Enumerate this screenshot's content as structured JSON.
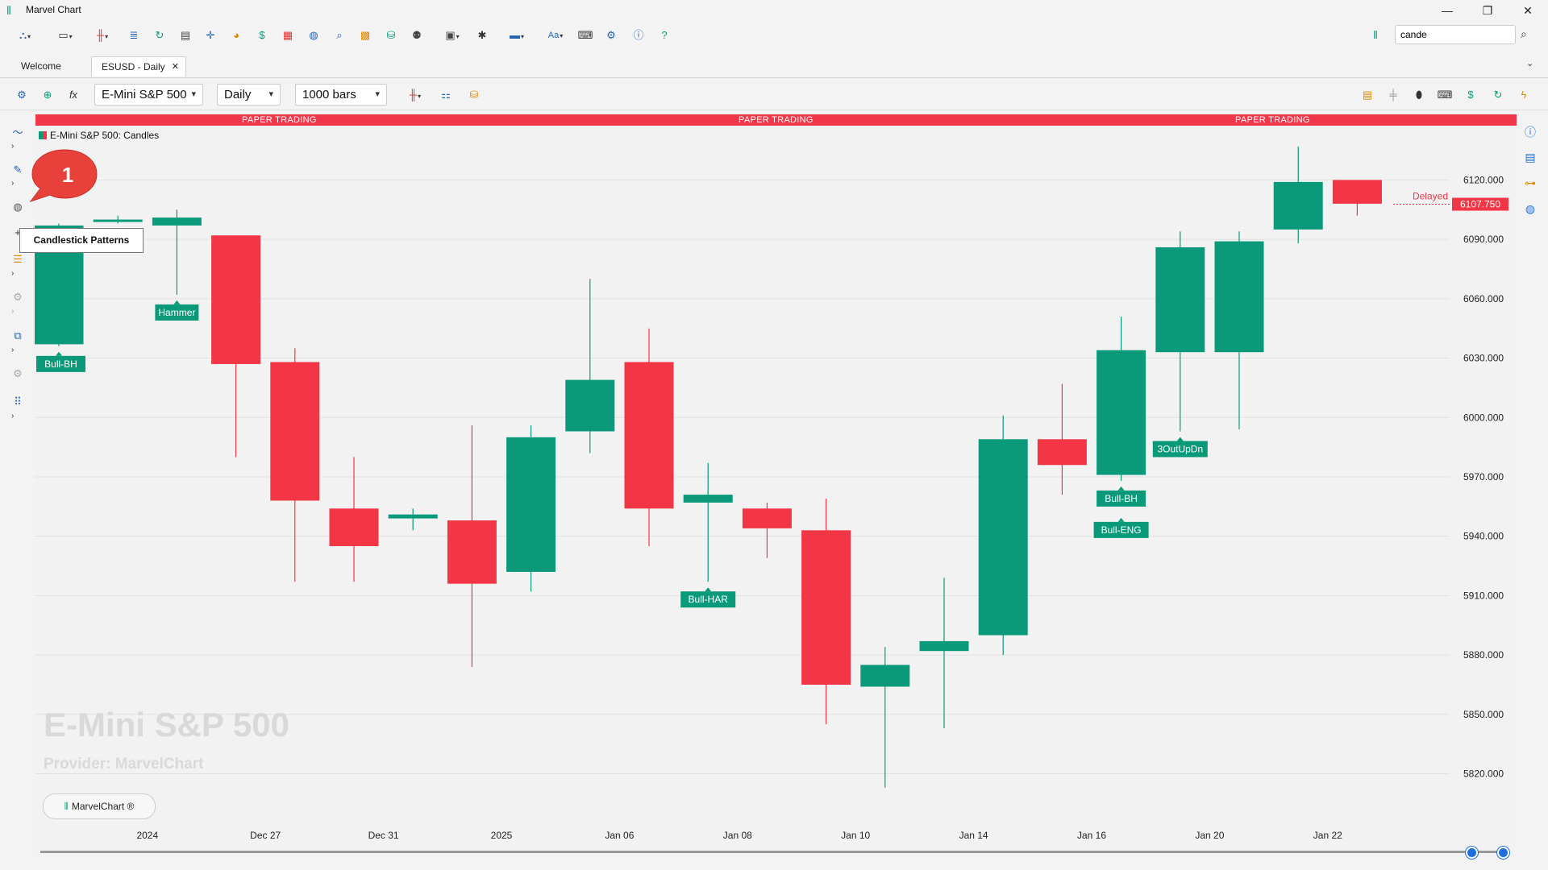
{
  "window": {
    "title": "Marvel Chart",
    "minimize": "—",
    "restore": "❐",
    "close": "✕"
  },
  "search": {
    "value": "cande"
  },
  "tabs": [
    {
      "label": "Welcome"
    },
    {
      "label": "ESUSD - Daily",
      "close": "✕"
    }
  ],
  "chart_toolbar": {
    "instrument": "E-Mini S&P 500",
    "timeframe": "Daily",
    "bars": "1000 bars"
  },
  "banner": {
    "text": "PAPER TRADING"
  },
  "legend": {
    "text": "E-Mini S&P 500: Candles"
  },
  "watermark": {
    "title": "E-Mini S&P 500",
    "provider": "Provider: MarvelChart"
  },
  "badge": {
    "label": "MarvelChart ®"
  },
  "tooltip": {
    "text": "Candlestick Patterns"
  },
  "callout": {
    "number": "1"
  },
  "price_tag": {
    "label": "Delayed",
    "value": "6107.750"
  },
  "colors": {
    "up": "#0a9a7a",
    "down": "#f23645",
    "banner": "#f0384a",
    "accent": "#1e6fd9"
  },
  "chart_data": {
    "type": "candlestick",
    "y_ticks": [
      "6120.000",
      "6090.000",
      "6060.000",
      "6030.000",
      "6000.000",
      "5970.000",
      "5940.000",
      "5910.000",
      "5880.000",
      "5850.000",
      "5820.000"
    ],
    "ylim": [
      5808,
      6145
    ],
    "x_ticks": [
      {
        "label": "2024",
        "at": 1
      },
      {
        "label": "Dec 27",
        "at": 3
      },
      {
        "label": "Dec 31",
        "at": 5
      },
      {
        "label": "2025",
        "at": 7
      },
      {
        "label": "Jan 06",
        "at": 9
      },
      {
        "label": "Jan 08",
        "at": 11
      },
      {
        "label": "Jan 10",
        "at": 13
      },
      {
        "label": "Jan 14",
        "at": 15
      },
      {
        "label": "Jan 16",
        "at": 17
      },
      {
        "label": "Jan 20",
        "at": 19
      },
      {
        "label": "Jan 22",
        "at": 21
      }
    ],
    "candles": [
      {
        "o": 6037,
        "h": 6098,
        "l": 6036,
        "c": 6097
      },
      {
        "o": 6100,
        "h": 6102,
        "l": 6098,
        "c": 6100
      },
      {
        "o": 6097,
        "h": 6105,
        "l": 6062,
        "c": 6101
      },
      {
        "o": 6092,
        "h": 6092,
        "l": 5980,
        "c": 6027
      },
      {
        "o": 6028,
        "h": 6035,
        "l": 5917,
        "c": 5958
      },
      {
        "o": 5954,
        "h": 5980,
        "l": 5917,
        "c": 5935
      },
      {
        "o": 5949,
        "h": 5954,
        "l": 5943,
        "c": 5951
      },
      {
        "o": 5948,
        "h": 5996,
        "l": 5874,
        "c": 5916
      },
      {
        "o": 5922,
        "h": 5996,
        "l": 5912,
        "c": 5990
      },
      {
        "o": 5993,
        "h": 6070,
        "l": 5982,
        "c": 6019
      },
      {
        "o": 6028,
        "h": 6045,
        "l": 5935,
        "c": 5954
      },
      {
        "o": 5957,
        "h": 5977,
        "l": 5917,
        "c": 5961
      },
      {
        "o": 5954,
        "h": 5957,
        "l": 5929,
        "c": 5944
      },
      {
        "o": 5943,
        "h": 5959,
        "l": 5845,
        "c": 5865
      },
      {
        "o": 5864,
        "h": 5884,
        "l": 5813,
        "c": 5875
      },
      {
        "o": 5882,
        "h": 5919,
        "l": 5843,
        "c": 5887
      },
      {
        "o": 5890,
        "h": 6001,
        "l": 5880,
        "c": 5989
      },
      {
        "o": 5989,
        "h": 6017,
        "l": 5961,
        "c": 5976
      },
      {
        "o": 5971,
        "h": 6051,
        "l": 5968,
        "c": 6034
      },
      {
        "o": 6033,
        "h": 6094,
        "l": 5993,
        "c": 6086
      },
      {
        "o": 6033,
        "h": 6094,
        "l": 5994,
        "c": 6089
      },
      {
        "o": 6095,
        "h": 6137,
        "l": 6088,
        "c": 6119
      },
      {
        "o": 6120,
        "h": 6120,
        "l": 6102,
        "c": 6108
      }
    ],
    "patterns": [
      {
        "label": "Hammer",
        "index": 2
      },
      {
        "label": "Bull-HAR",
        "index": 11
      },
      {
        "label": "Bull-BH",
        "index": 18
      },
      {
        "label": "Bull-ENG",
        "index": 18
      },
      {
        "label": "3OutUpDn",
        "index": 19
      },
      {
        "label": "Bull-BH",
        "index": 0
      }
    ]
  }
}
